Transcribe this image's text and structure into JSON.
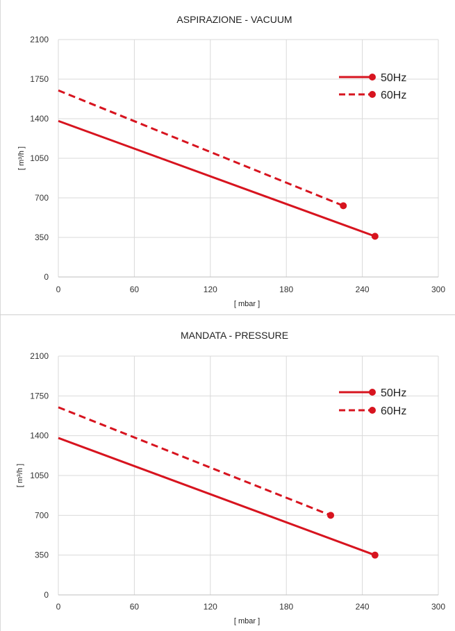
{
  "chart_data": [
    {
      "type": "line",
      "title": "ASPIRAZIONE - VACUUM",
      "xlabel": "[ mbar ]",
      "ylabel": "[ m³/h ]",
      "xlim": [
        0,
        300
      ],
      "ylim": [
        0,
        2100
      ],
      "xticks": [
        0,
        60,
        120,
        180,
        240,
        300
      ],
      "yticks": [
        0,
        350,
        700,
        1050,
        1400,
        1750,
        2100
      ],
      "grid": true,
      "legend_position": "top-right",
      "series": [
        {
          "name": "50Hz",
          "style": "solid",
          "color": "#d7141f",
          "x": [
            0,
            250
          ],
          "y": [
            1380,
            360
          ],
          "end_marker": true
        },
        {
          "name": "60Hz",
          "style": "dashed",
          "color": "#d7141f",
          "x": [
            0,
            225
          ],
          "y": [
            1650,
            630
          ],
          "end_marker": true
        }
      ]
    },
    {
      "type": "line",
      "title": "MANDATA - PRESSURE",
      "xlabel": "[ mbar ]",
      "ylabel": "[ m³/h ]",
      "xlim": [
        0,
        300
      ],
      "ylim": [
        0,
        2100
      ],
      "xticks": [
        0,
        60,
        120,
        180,
        240,
        300
      ],
      "yticks": [
        0,
        350,
        700,
        1050,
        1400,
        1750,
        2100
      ],
      "grid": true,
      "legend_position": "top-right",
      "series": [
        {
          "name": "50Hz",
          "style": "solid",
          "color": "#d7141f",
          "x": [
            0,
            250
          ],
          "y": [
            1380,
            350
          ],
          "end_marker": true
        },
        {
          "name": "60Hz",
          "style": "dashed",
          "color": "#d7141f",
          "x": [
            0,
            215
          ],
          "y": [
            1650,
            700
          ],
          "end_marker": true
        }
      ]
    }
  ]
}
